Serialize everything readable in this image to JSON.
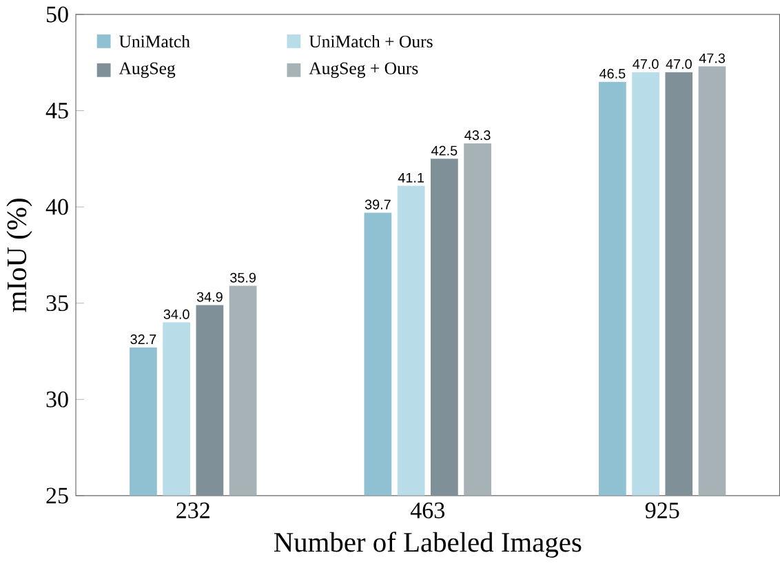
{
  "chart_data": {
    "type": "bar",
    "xlabel": "Number of Labeled Images",
    "ylabel": "mIoU (%)",
    "categories": [
      "232",
      "463",
      "925"
    ],
    "series": [
      {
        "name": "UniMatch",
        "color": "#8fc1d3",
        "values": [
          32.7,
          39.7,
          46.5
        ],
        "value_labels": [
          "32.7",
          "39.7",
          "46.5"
        ]
      },
      {
        "name": "UniMatch + Ours",
        "color": "#b8dce8",
        "values": [
          34.0,
          41.1,
          47.0
        ],
        "value_labels": [
          "34.0",
          "41.1",
          "47.0"
        ]
      },
      {
        "name": "AugSeg",
        "color": "#7f9098",
        "values": [
          34.9,
          42.5,
          47.0
        ],
        "value_labels": [
          "34.9",
          "42.5",
          "47.0"
        ]
      },
      {
        "name": "AugSeg + Ours",
        "color": "#a7b2b7",
        "values": [
          35.9,
          43.3,
          47.3
        ],
        "value_labels": [
          "35.9",
          "43.3",
          "47.3"
        ]
      }
    ],
    "ylim": [
      25,
      50
    ],
    "yticks": [
      25,
      30,
      35,
      40,
      45,
      50
    ],
    "legend": "top left",
    "grid": false
  }
}
